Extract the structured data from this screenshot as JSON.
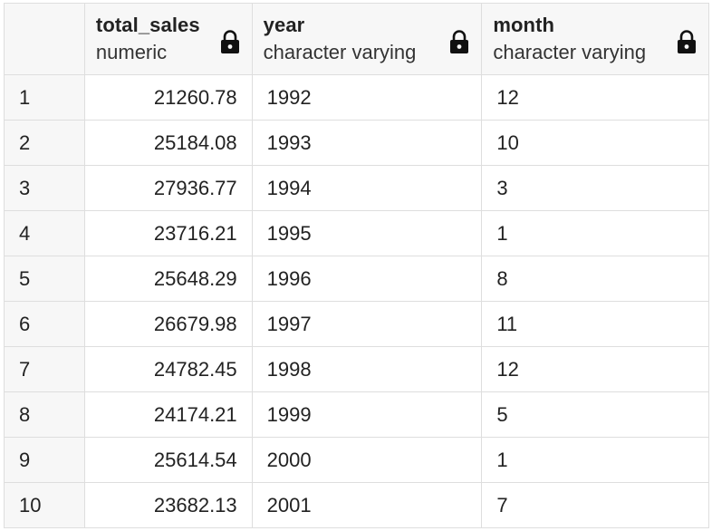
{
  "columns": [
    {
      "name": "total_sales",
      "type": "numeric",
      "locked": true
    },
    {
      "name": "year",
      "type": "character varying",
      "locked": true
    },
    {
      "name": "month",
      "type": "character varying",
      "locked": true
    }
  ],
  "rows": [
    {
      "num": "1",
      "total_sales": "21260.78",
      "year": "1992",
      "month": "12"
    },
    {
      "num": "2",
      "total_sales": "25184.08",
      "year": "1993",
      "month": "10"
    },
    {
      "num": "3",
      "total_sales": "27936.77",
      "year": "1994",
      "month": "3"
    },
    {
      "num": "4",
      "total_sales": "23716.21",
      "year": "1995",
      "month": "1"
    },
    {
      "num": "5",
      "total_sales": "25648.29",
      "year": "1996",
      "month": "8"
    },
    {
      "num": "6",
      "total_sales": "26679.98",
      "year": "1997",
      "month": "11"
    },
    {
      "num": "7",
      "total_sales": "24782.45",
      "year": "1998",
      "month": "12"
    },
    {
      "num": "8",
      "total_sales": "24174.21",
      "year": "1999",
      "month": "5"
    },
    {
      "num": "9",
      "total_sales": "25614.54",
      "year": "2000",
      "month": "1"
    },
    {
      "num": "10",
      "total_sales": "23682.13",
      "year": "2001",
      "month": "7"
    }
  ],
  "icons": {
    "lock": "lock-icon"
  },
  "colors": {
    "header_bg": "#f7f7f7",
    "grid_line": "#dedede",
    "text": "#222222"
  }
}
